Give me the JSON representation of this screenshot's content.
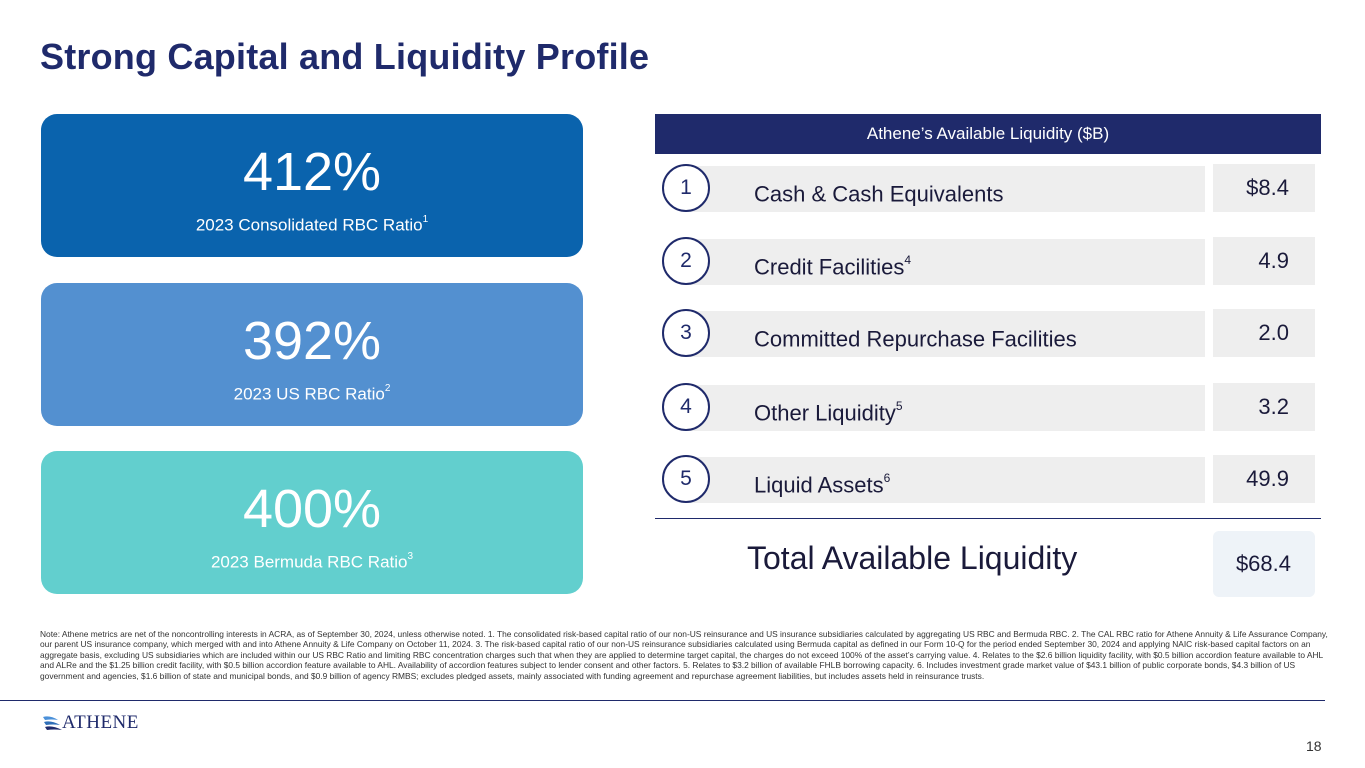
{
  "title": "Strong Capital and Liquidity Profile",
  "ratios": [
    {
      "value": "412%",
      "label": "2023 Consolidated RBC Ratio",
      "footnote": "1",
      "color": "#0a63ad"
    },
    {
      "value": "392%",
      "label": "2023 US RBC Ratio",
      "footnote": "2",
      "color": "#5390d0"
    },
    {
      "value": "400%",
      "label": "2023 Bermuda RBC Ratio",
      "footnote": "3",
      "color": "#62cfce"
    }
  ],
  "liquidity": {
    "header": "Athene’s Available Liquidity ($B)",
    "rows": [
      {
        "number": "1",
        "label": "Cash & Cash Equivalents",
        "footnote": "",
        "value": "$8.4"
      },
      {
        "number": "2",
        "label": "Credit Facilities",
        "footnote": "4",
        "value": "4.9"
      },
      {
        "number": "3",
        "label": "Committed Repurchase Facilities",
        "footnote": "",
        "value": "2.0"
      },
      {
        "number": "4",
        "label": "Other Liquidity",
        "footnote": "5",
        "value": "3.2"
      },
      {
        "number": "5",
        "label": "Liquid Assets",
        "footnote": "6",
        "value": "49.9"
      }
    ],
    "total_label": "Total Available Liquidity",
    "total_value": "$68.4"
  },
  "note": "Note: Athene metrics are net of the noncontrolling interests in ACRA, as of September 30, 2024, unless otherwise noted. 1. The consolidated risk-based capital ratio of our non-US reinsurance and US insurance subsidiaries calculated by aggregating US RBC and Bermuda RBC. 2. The CAL RBC ratio for Athene Annuity & Life Assurance Company, our parent US insurance company, which merged with and into Athene Annuity & Life Company on October 11, 2024. 3. The risk-based capital ratio of our non-US reinsurance subsidiaries calculated using Bermuda capital as defined in our Form 10-Q for the period ended September 30, 2024 and applying NAIC risk-based capital factors on an aggregate basis, excluding US subsidiaries which are included within our US RBC Ratio and limiting RBC concentration charges such that when they are applied to determine target capital, the charges do not exceed 100% of the asset’s carrying value. 4. Relates to the $2.6 billion liquidity facility, with $0.5 billion accordion feature available to AHL and ALRe and the $1.25 billion credit facility, with $0.5 billion accordion feature available to AHL. Availability of accordion features subject to lender consent and other factors. 5. Relates to $3.2 billion of available FHLB borrowing capacity. 6. Includes investment grade market value of $43.1 billion of public corporate bonds, $4.3 billion of US government and agencies, $1.6 billion of state and municipal bonds, and $0.9 billion of agency RMBS; excludes pledged assets, mainly associated with funding agreement and repurchase agreement liabilities, but includes assets held in reinsurance trusts.",
  "logo_text": "ATHENE",
  "page_number": "18"
}
